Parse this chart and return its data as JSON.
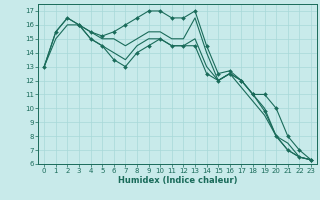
{
  "xlabel": "Humidex (Indice chaleur)",
  "bg_color": "#c8eaea",
  "line_color": "#1a6b5a",
  "grid_color": "#a8d8d8",
  "xlim": [
    -0.5,
    23.5
  ],
  "ylim": [
    6,
    17.5
  ],
  "yticks": [
    6,
    7,
    8,
    9,
    10,
    11,
    12,
    13,
    14,
    15,
    16,
    17
  ],
  "xticks": [
    0,
    1,
    2,
    3,
    4,
    5,
    6,
    7,
    8,
    9,
    10,
    11,
    12,
    13,
    14,
    15,
    16,
    17,
    18,
    19,
    20,
    21,
    22,
    23
  ],
  "series": [
    {
      "x": [
        0,
        1,
        2,
        3,
        4,
        5,
        6,
        7,
        8,
        9,
        10,
        11,
        12,
        13,
        14,
        15,
        16,
        17,
        18,
        19,
        20,
        21,
        22,
        23
      ],
      "y": [
        13,
        15.5,
        16.5,
        16,
        15.5,
        15.2,
        15.5,
        16,
        16.5,
        17,
        17,
        16.5,
        16.5,
        17,
        14.5,
        12.5,
        12.7,
        12,
        11,
        9.8,
        8,
        7,
        6.5,
        6.3
      ],
      "marker": "D",
      "ms": 2.0
    },
    {
      "x": [
        0,
        1,
        2,
        3,
        4,
        5,
        6,
        7,
        8,
        9,
        10,
        11,
        12,
        13,
        14,
        15,
        16,
        17,
        18,
        19,
        20,
        21,
        22,
        23
      ],
      "y": [
        13,
        15.5,
        16.5,
        16,
        15,
        14.5,
        14,
        13.5,
        14.5,
        15,
        15,
        14.5,
        14.5,
        15,
        13,
        12,
        12.5,
        11.5,
        10.5,
        9.5,
        8,
        7,
        6.5,
        6.3
      ],
      "marker": null,
      "ms": 0
    },
    {
      "x": [
        0,
        1,
        2,
        3,
        4,
        5,
        6,
        7,
        8,
        9,
        10,
        11,
        12,
        13,
        14,
        15,
        16,
        17,
        18,
        19,
        20,
        21,
        22,
        23
      ],
      "y": [
        13,
        15,
        16,
        16,
        15.5,
        15,
        15,
        14.5,
        15,
        15.5,
        15.5,
        15,
        15,
        16.5,
        14,
        12,
        12.5,
        12,
        11,
        10,
        8,
        7.5,
        6.5,
        6.3
      ],
      "marker": null,
      "ms": 0
    },
    {
      "x": [
        3,
        4,
        5,
        6,
        7,
        8,
        9,
        10,
        11,
        12,
        13,
        14,
        15,
        16,
        17,
        18,
        19,
        20,
        21,
        22,
        23
      ],
      "y": [
        16,
        15,
        14.5,
        13.5,
        13,
        14,
        14.5,
        15,
        14.5,
        14.5,
        14.5,
        12.5,
        12,
        12.5,
        12,
        11,
        11,
        10,
        8,
        7,
        6.3
      ],
      "marker": "D",
      "ms": 2.0
    }
  ]
}
